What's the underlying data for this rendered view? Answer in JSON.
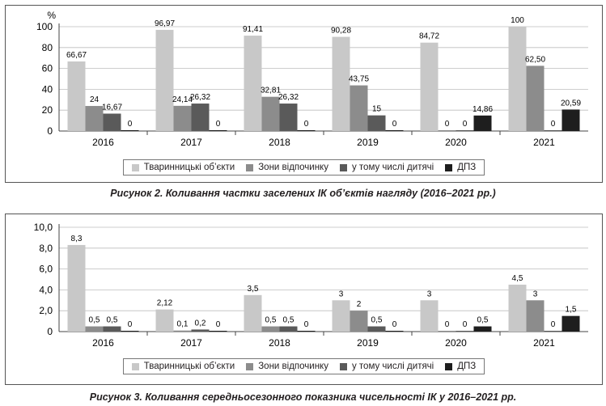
{
  "legend_labels": [
    "Тваринницькі об’єкти",
    "Зони відпочинку",
    "у тому числі дитячі",
    "ДПЗ"
  ],
  "colors": [
    "#c8c8c8",
    "#8c8c8c",
    "#5a5a5a",
    "#1e1e1e"
  ],
  "chart_data": [
    {
      "type": "bar",
      "ylabel": "%",
      "categories": [
        "2016",
        "2017",
        "2018",
        "2019",
        "2020",
        "2021"
      ],
      "yticks": [
        "0",
        "20",
        "40",
        "60",
        "80",
        "100"
      ],
      "ylim": [
        0,
        100
      ],
      "series": [
        {
          "name": "Тваринницькі об’єкти",
          "values": [
            66.67,
            96.97,
            91.41,
            90.28,
            84.72,
            100
          ],
          "labels": [
            "66,67",
            "96,97",
            "91,41",
            "90,28",
            "84,72",
            "100"
          ]
        },
        {
          "name": "Зони відпочинку",
          "values": [
            24,
            24.14,
            32.81,
            43.75,
            0,
            62.5
          ],
          "labels": [
            "24",
            "24,14",
            "32,81",
            "43,75",
            "0",
            "62,50"
          ]
        },
        {
          "name": "у тому числі дитячі",
          "values": [
            16.67,
            26.32,
            26.32,
            15,
            0,
            0
          ],
          "labels": [
            "16,67",
            "26,32",
            "26,32",
            "15",
            "0",
            "0"
          ]
        },
        {
          "name": "ДПЗ",
          "values": [
            0,
            0,
            0,
            0,
            14.86,
            20.59
          ],
          "labels": [
            "0",
            "0",
            "0",
            "0",
            "14,86",
            "20,59"
          ]
        }
      ],
      "caption": "Рисунок 2.  Коливання частки заселених ІК об’єктів нагляду (2016–2021 рр.)"
    },
    {
      "type": "bar",
      "ylabel": "",
      "categories": [
        "2016",
        "2017",
        "2018",
        "2019",
        "2020",
        "2021"
      ],
      "yticks": [
        "0",
        "2,0",
        "4,0",
        "6,0",
        "8,0",
        "10,0"
      ],
      "ylim": [
        0,
        10
      ],
      "series": [
        {
          "name": "Тваринницькі об’єкти",
          "values": [
            8.3,
            2.12,
            3.5,
            3,
            3,
            4.5
          ],
          "labels": [
            "8,3",
            "2,12",
            "3,5",
            "3",
            "3",
            "4,5"
          ]
        },
        {
          "name": "Зони відпочинку",
          "values": [
            0.5,
            0.1,
            0.5,
            2,
            0,
            3
          ],
          "labels": [
            "0,5",
            "0,1",
            "0,5",
            "2",
            "0",
            "3"
          ]
        },
        {
          "name": "у тому числі дитячі",
          "values": [
            0.5,
            0.2,
            0.5,
            0.5,
            0,
            0
          ],
          "labels": [
            "0,5",
            "0,2",
            "0,5",
            "0,5",
            "0",
            "0"
          ]
        },
        {
          "name": "ДПЗ",
          "values": [
            0,
            0,
            0,
            0,
            0.5,
            1.5
          ],
          "labels": [
            "0",
            "0",
            "0",
            "0",
            "0,5",
            "1,5"
          ]
        }
      ],
      "caption": "Рисунок 3.  Коливання середньосезонного показника чисельності ІК у 2016–2021 рр."
    }
  ]
}
